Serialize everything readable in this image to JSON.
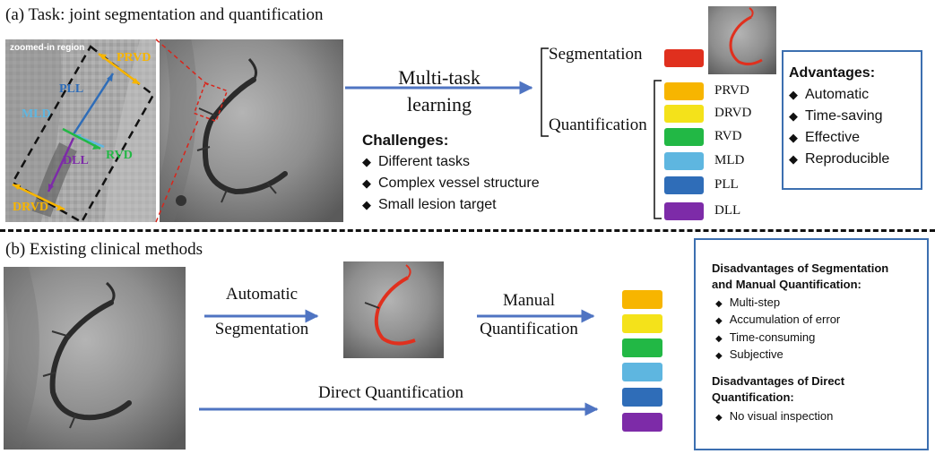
{
  "colors": {
    "arrow": "#4f74c2",
    "segmentation": "#e0301e",
    "PRVD": "#f7b500",
    "DRVD": "#f4e21a",
    "RVD": "#22b845",
    "MLD": "#5eb6e0",
    "PLL": "#2f6db8",
    "DLL": "#7d2ba8",
    "box_border": "#3c6fb0"
  },
  "panel_a": {
    "title": "(a) Task: joint segmentation and quantification",
    "zoom_label": "zoomed-in region",
    "zoom_annotations": {
      "prvd": "PRVD",
      "pll": "PLL",
      "mld": "MLD",
      "rvd": "RVD",
      "dll": "DLL",
      "drvd": "DRVD"
    },
    "multitask_line1": "Multi-task",
    "multitask_line2": "learning",
    "segmentation_label": "Segmentation",
    "quantification_label": "Quantification",
    "indices": [
      "PRVD",
      "DRVD",
      "RVD",
      "MLD",
      "PLL",
      "DLL"
    ],
    "challenges": {
      "title": "Challenges:",
      "items": [
        "Different tasks",
        "Complex vessel structure",
        "Small lesion target"
      ]
    },
    "advantages": {
      "title": "Advantages:",
      "items": [
        "Automatic",
        "Time-saving",
        "Effective",
        "Reproducible"
      ]
    }
  },
  "panel_b": {
    "title": "(b) Existing clinical methods",
    "auto_seg_line1": "Automatic",
    "auto_seg_line2": "Segmentation",
    "manual_q_line1": "Manual",
    "manual_q_line2": "Quantification",
    "direct_q": "Direct Quantification",
    "disadv_seg": {
      "title_line1": "Disadvantages of Segmentation",
      "title_line2": "and Manual Quantification:",
      "items": [
        "Multi-step",
        "Accumulation of error",
        "Time-consuming",
        "Subjective"
      ]
    },
    "disadv_direct": {
      "title_line1": "Disadvantages of Direct",
      "title_line2": "Quantification:",
      "items": [
        "No visual inspection"
      ]
    }
  }
}
